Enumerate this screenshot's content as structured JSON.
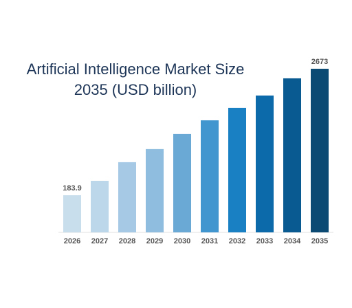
{
  "chart_data": {
    "type": "bar",
    "title": "Artificial Intelligence Market Size 2035 (USD billion)",
    "categories": [
      "2026",
      "2027",
      "2028",
      "2029",
      "2030",
      "2031",
      "2032",
      "2033",
      "2034",
      "2035"
    ],
    "values": [
      183.9,
      468,
      834,
      1092,
      1389,
      1658,
      1903,
      2146,
      2484,
      2673
    ],
    "value_labels": [
      "183.9",
      null,
      null,
      null,
      null,
      null,
      null,
      null,
      null,
      "2673"
    ],
    "colors": [
      "#c9deec",
      "#bcd7ea",
      "#a6cae5",
      "#8fbddf",
      "#6aa8d6",
      "#4196cf",
      "#1a80c4",
      "#0d6aaa",
      "#0a5a92",
      "#0b4a72"
    ],
    "ylim": [
      -547,
      2700
    ]
  }
}
